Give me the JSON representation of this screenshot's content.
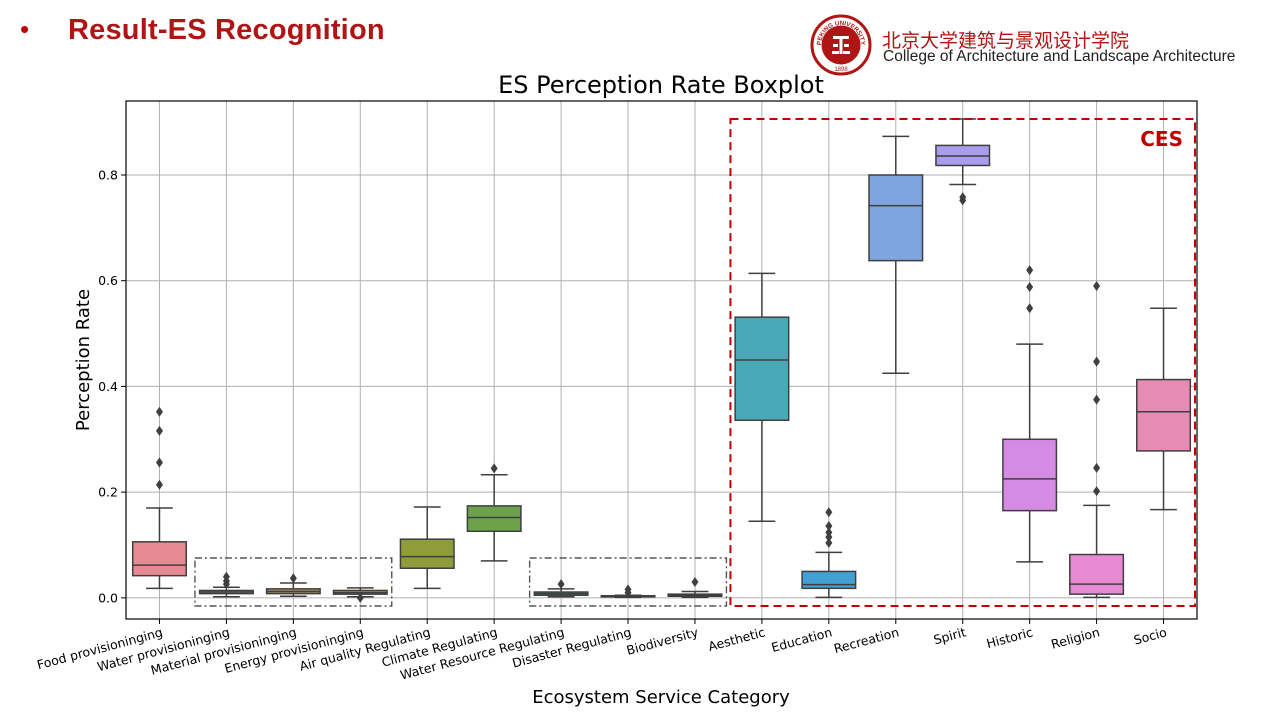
{
  "slide": {
    "bullet": "•",
    "title": "Result-ES Recognition",
    "institution_cn": "北京大学建筑与景观设计学院",
    "institution_en": "College of Architecture and Landscape Architecture",
    "logo_text": "PEKING UNIVERSITY",
    "logo_year": "1898",
    "accent_color": "#b01515"
  },
  "chart_data": {
    "type": "boxplot",
    "title": "ES Perception Rate Boxplot",
    "xlabel": "Ecosystem Service Category",
    "ylabel": "Perception Rate",
    "ylim": [
      -0.04,
      0.94
    ],
    "yticks": [
      "0.0",
      "0.2",
      "0.4",
      "0.6",
      "0.8"
    ],
    "grid": true,
    "categories": [
      "Food provisioninging",
      "Water provisioninging",
      "Material provisioninging",
      "Energy provisioninging",
      "Air quality Regulating",
      "Climate Regulating",
      "Water Resource Regulating",
      "Disaster Regulating",
      "Biodiversity",
      "Aesthetic",
      "Education",
      "Recreation",
      "Spirit",
      "Historic",
      "Religion",
      "Socio"
    ],
    "colors": [
      "#e88a91",
      "#a49076",
      "#ab8f60",
      "#a79a55",
      "#8e9d3a",
      "#6da24a",
      "#4ca27a",
      "#45a39b",
      "#48a7b8",
      "#4aa9b8",
      "#42a0d4",
      "#7ea5e0",
      "#ac9ced",
      "#d58be4",
      "#e68ad4",
      "#e58bb4"
    ],
    "boxes": [
      {
        "whislo": 0.018,
        "q1": 0.042,
        "med": 0.062,
        "q3": 0.106,
        "whishi": 0.17,
        "fliers": [
          0.214,
          0.256,
          0.316,
          0.352
        ]
      },
      {
        "whislo": 0.002,
        "q1": 0.008,
        "med": 0.011,
        "q3": 0.014,
        "whishi": 0.02,
        "fliers": [
          0.026,
          0.032,
          0.04
        ]
      },
      {
        "whislo": 0.003,
        "q1": 0.008,
        "med": 0.012,
        "q3": 0.017,
        "whishi": 0.028,
        "fliers": [
          0.037
        ]
      },
      {
        "whislo": 0.002,
        "q1": 0.007,
        "med": 0.01,
        "q3": 0.014,
        "whishi": 0.019,
        "fliers": [
          0.0
        ]
      },
      {
        "whislo": 0.018,
        "q1": 0.056,
        "med": 0.078,
        "q3": 0.111,
        "whishi": 0.172,
        "fliers": []
      },
      {
        "whislo": 0.07,
        "q1": 0.126,
        "med": 0.152,
        "q3": 0.174,
        "whishi": 0.233,
        "fliers": [
          0.245
        ]
      },
      {
        "whislo": 0.002,
        "q1": 0.005,
        "med": 0.008,
        "q3": 0.011,
        "whishi": 0.017,
        "fliers": [
          0.026
        ]
      },
      {
        "whislo": 0.001,
        "q1": 0.002,
        "med": 0.003,
        "q3": 0.004,
        "whishi": 0.005,
        "fliers": [
          0.01,
          0.016
        ]
      },
      {
        "whislo": 0.001,
        "q1": 0.003,
        "med": 0.005,
        "q3": 0.007,
        "whishi": 0.012,
        "fliers": [
          0.03
        ]
      },
      {
        "whislo": 0.145,
        "q1": 0.336,
        "med": 0.45,
        "q3": 0.531,
        "whishi": 0.614,
        "fliers": []
      },
      {
        "whislo": 0.001,
        "q1": 0.018,
        "med": 0.025,
        "q3": 0.05,
        "whishi": 0.086,
        "fliers": [
          0.104,
          0.115,
          0.124,
          0.136,
          0.162
        ]
      },
      {
        "whislo": 0.425,
        "q1": 0.638,
        "med": 0.742,
        "q3": 0.8,
        "whishi": 0.873,
        "fliers": []
      },
      {
        "whislo": 0.782,
        "q1": 0.818,
        "med": 0.836,
        "q3": 0.856,
        "whishi": 0.906,
        "fliers": [
          0.752,
          0.758
        ]
      },
      {
        "whislo": 0.068,
        "q1": 0.165,
        "med": 0.225,
        "q3": 0.3,
        "whishi": 0.48,
        "fliers": [
          0.548,
          0.588,
          0.62
        ]
      },
      {
        "whislo": 0.001,
        "q1": 0.007,
        "med": 0.026,
        "q3": 0.082,
        "whishi": 0.175,
        "fliers": [
          0.202,
          0.246,
          0.375,
          0.447,
          0.59
        ]
      },
      {
        "whislo": 0.167,
        "q1": 0.278,
        "med": 0.352,
        "q3": 0.413,
        "whishi": 0.548,
        "fliers": []
      }
    ],
    "annotations": [
      {
        "label": "CES",
        "style": "dashed",
        "color": "#c00000",
        "groups": [
          9,
          15
        ]
      },
      {
        "label": "",
        "style": "dashdot",
        "color": "#555555",
        "groups": [
          1,
          3
        ]
      },
      {
        "label": "",
        "style": "dashdot",
        "color": "#555555",
        "groups": [
          6,
          8
        ]
      }
    ]
  }
}
